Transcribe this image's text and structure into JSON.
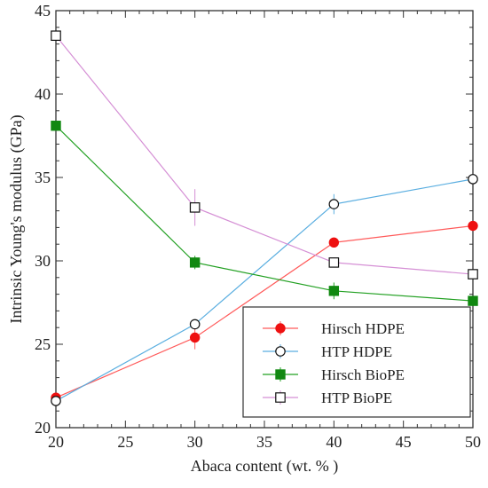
{
  "chart_data": {
    "type": "line",
    "xlabel": "Abaca content (wt. % )",
    "ylabel": "Intrinsic Young's modulus (GPa)",
    "xlim": [
      20,
      50
    ],
    "ylim": [
      20,
      45
    ],
    "x_ticks": [
      20,
      25,
      30,
      35,
      40,
      45,
      50
    ],
    "y_ticks": [
      20,
      25,
      30,
      35,
      40,
      45
    ],
    "grid": false,
    "legend_position": "bottom-right",
    "series": [
      {
        "name": "Hirsch HDPE",
        "color": "#ff5a5a",
        "marker": "filled-circle",
        "marker_color": "#ee1111",
        "x": [
          20,
          30,
          40,
          50
        ],
        "y": [
          21.8,
          25.4,
          31.1,
          32.1
        ],
        "err": [
          0.2,
          0.7,
          0.3,
          0.2
        ]
      },
      {
        "name": "HTP HDPE",
        "color": "#5aaee0",
        "marker": "open-circle",
        "marker_color": "#111111",
        "x": [
          20,
          30,
          40,
          50
        ],
        "y": [
          21.6,
          26.2,
          33.4,
          34.9
        ],
        "err": [
          0.2,
          0.3,
          0.6,
          0.2
        ]
      },
      {
        "name": "Hirsch BioPE",
        "color": "#22a022",
        "marker": "filled-square",
        "marker_color": "#118811",
        "x": [
          20,
          30,
          40,
          50
        ],
        "y": [
          38.1,
          29.9,
          28.2,
          27.6
        ],
        "err": [
          0.2,
          0.4,
          0.5,
          0.2
        ]
      },
      {
        "name": "HTP BioPE",
        "color": "#d58fd5",
        "marker": "open-square",
        "marker_color": "#111111",
        "x": [
          20,
          30,
          40,
          50
        ],
        "y": [
          43.5,
          33.2,
          29.9,
          29.2
        ],
        "err": [
          0.2,
          1.1,
          0.3,
          0.2
        ]
      }
    ]
  }
}
